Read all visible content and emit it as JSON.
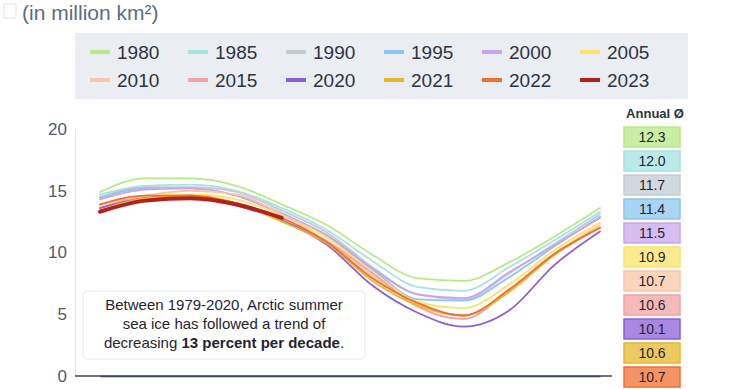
{
  "chart_data": {
    "type": "line",
    "subtitle": "(in million km²)",
    "categories": [
      null,
      null,
      null,
      null,
      null,
      null,
      null,
      null,
      null,
      null,
      null,
      null
    ],
    "series": [
      {
        "name": "1980",
        "color": "#b8e986",
        "values": [
          14.9,
          16.0,
          16.0,
          15.4,
          13.9,
          12.2,
          9.8,
          7.9,
          7.7,
          9.2,
          11.3,
          13.6
        ],
        "annual": 12.3
      },
      {
        "name": "1985",
        "color": "#a6e3e0",
        "values": [
          14.7,
          15.4,
          15.5,
          15.0,
          13.6,
          11.8,
          9.3,
          7.2,
          6.9,
          8.8,
          11.0,
          13.3
        ],
        "annual": 12.0
      },
      {
        "name": "1990",
        "color": "#c3ccd3",
        "values": [
          14.5,
          15.3,
          15.3,
          14.9,
          13.4,
          11.6,
          8.8,
          6.6,
          6.2,
          8.3,
          10.7,
          13.1
        ],
        "annual": 11.7
      },
      {
        "name": "1995",
        "color": "#8ec5f0",
        "values": [
          14.4,
          15.2,
          15.2,
          14.6,
          13.2,
          11.3,
          8.6,
          6.2,
          6.1,
          8.0,
          10.5,
          12.9
        ],
        "annual": 11.4
      },
      {
        "name": "2000",
        "color": "#c9a6ec",
        "values": [
          14.3,
          15.1,
          15.2,
          14.6,
          13.1,
          11.4,
          8.7,
          6.6,
          6.3,
          8.4,
          10.6,
          12.8
        ],
        "annual": 11.5
      },
      {
        "name": "2005",
        "color": "#fbe36a",
        "values": [
          13.9,
          14.5,
          14.7,
          14.3,
          13.0,
          11.2,
          8.4,
          6.0,
          5.5,
          7.4,
          10.2,
          12.4
        ],
        "annual": 10.9
      },
      {
        "name": "2010",
        "color": "#fbc6a6",
        "values": [
          13.8,
          14.6,
          15.0,
          14.7,
          13.1,
          10.9,
          8.1,
          5.8,
          4.9,
          6.9,
          9.9,
          12.2
        ],
        "annual": 10.7
      },
      {
        "name": "2015",
        "color": "#f2a2a2",
        "values": [
          13.6,
          14.4,
          14.4,
          14.0,
          12.6,
          10.9,
          8.3,
          5.6,
          4.6,
          7.0,
          9.9,
          12.0
        ],
        "annual": 10.6
      },
      {
        "name": "2020",
        "color": "#8e5fd6",
        "values": [
          13.6,
          14.4,
          14.6,
          13.8,
          12.6,
          10.6,
          7.3,
          5.1,
          4.0,
          5.3,
          9.0,
          11.7
        ],
        "annual": 10.1
      },
      {
        "name": "2021",
        "color": "#e6b82c",
        "values": [
          13.4,
          14.4,
          14.6,
          14.0,
          12.5,
          10.7,
          7.7,
          5.7,
          4.9,
          6.8,
          9.8,
          12.0
        ],
        "annual": 10.6
      },
      {
        "name": "2022",
        "color": "#f07030",
        "values": [
          13.9,
          14.6,
          14.6,
          14.0,
          12.8,
          10.8,
          7.9,
          5.9,
          4.9,
          7.0,
          9.9,
          12.0
        ],
        "annual": 10.7
      },
      {
        "name": "2023",
        "color": "#b3211d",
        "values": [
          13.3,
          14.2,
          14.4,
          13.9,
          12.8,
          null,
          null,
          null,
          null,
          null,
          null,
          null
        ]
      }
    ],
    "ylim": [
      0,
      20
    ],
    "yticks": [
      0,
      5,
      10,
      15,
      20
    ],
    "grid": false,
    "legend": "top",
    "tick_labels": "y",
    "annual_title": "Annual Ø",
    "annotation": [
      "Between 1979-2020, Arctic summer",
      "sea ice has followed a trend of",
      "decreasing 13 percent per decade."
    ],
    "annotation_emphasis": "13 percent per decade"
  }
}
